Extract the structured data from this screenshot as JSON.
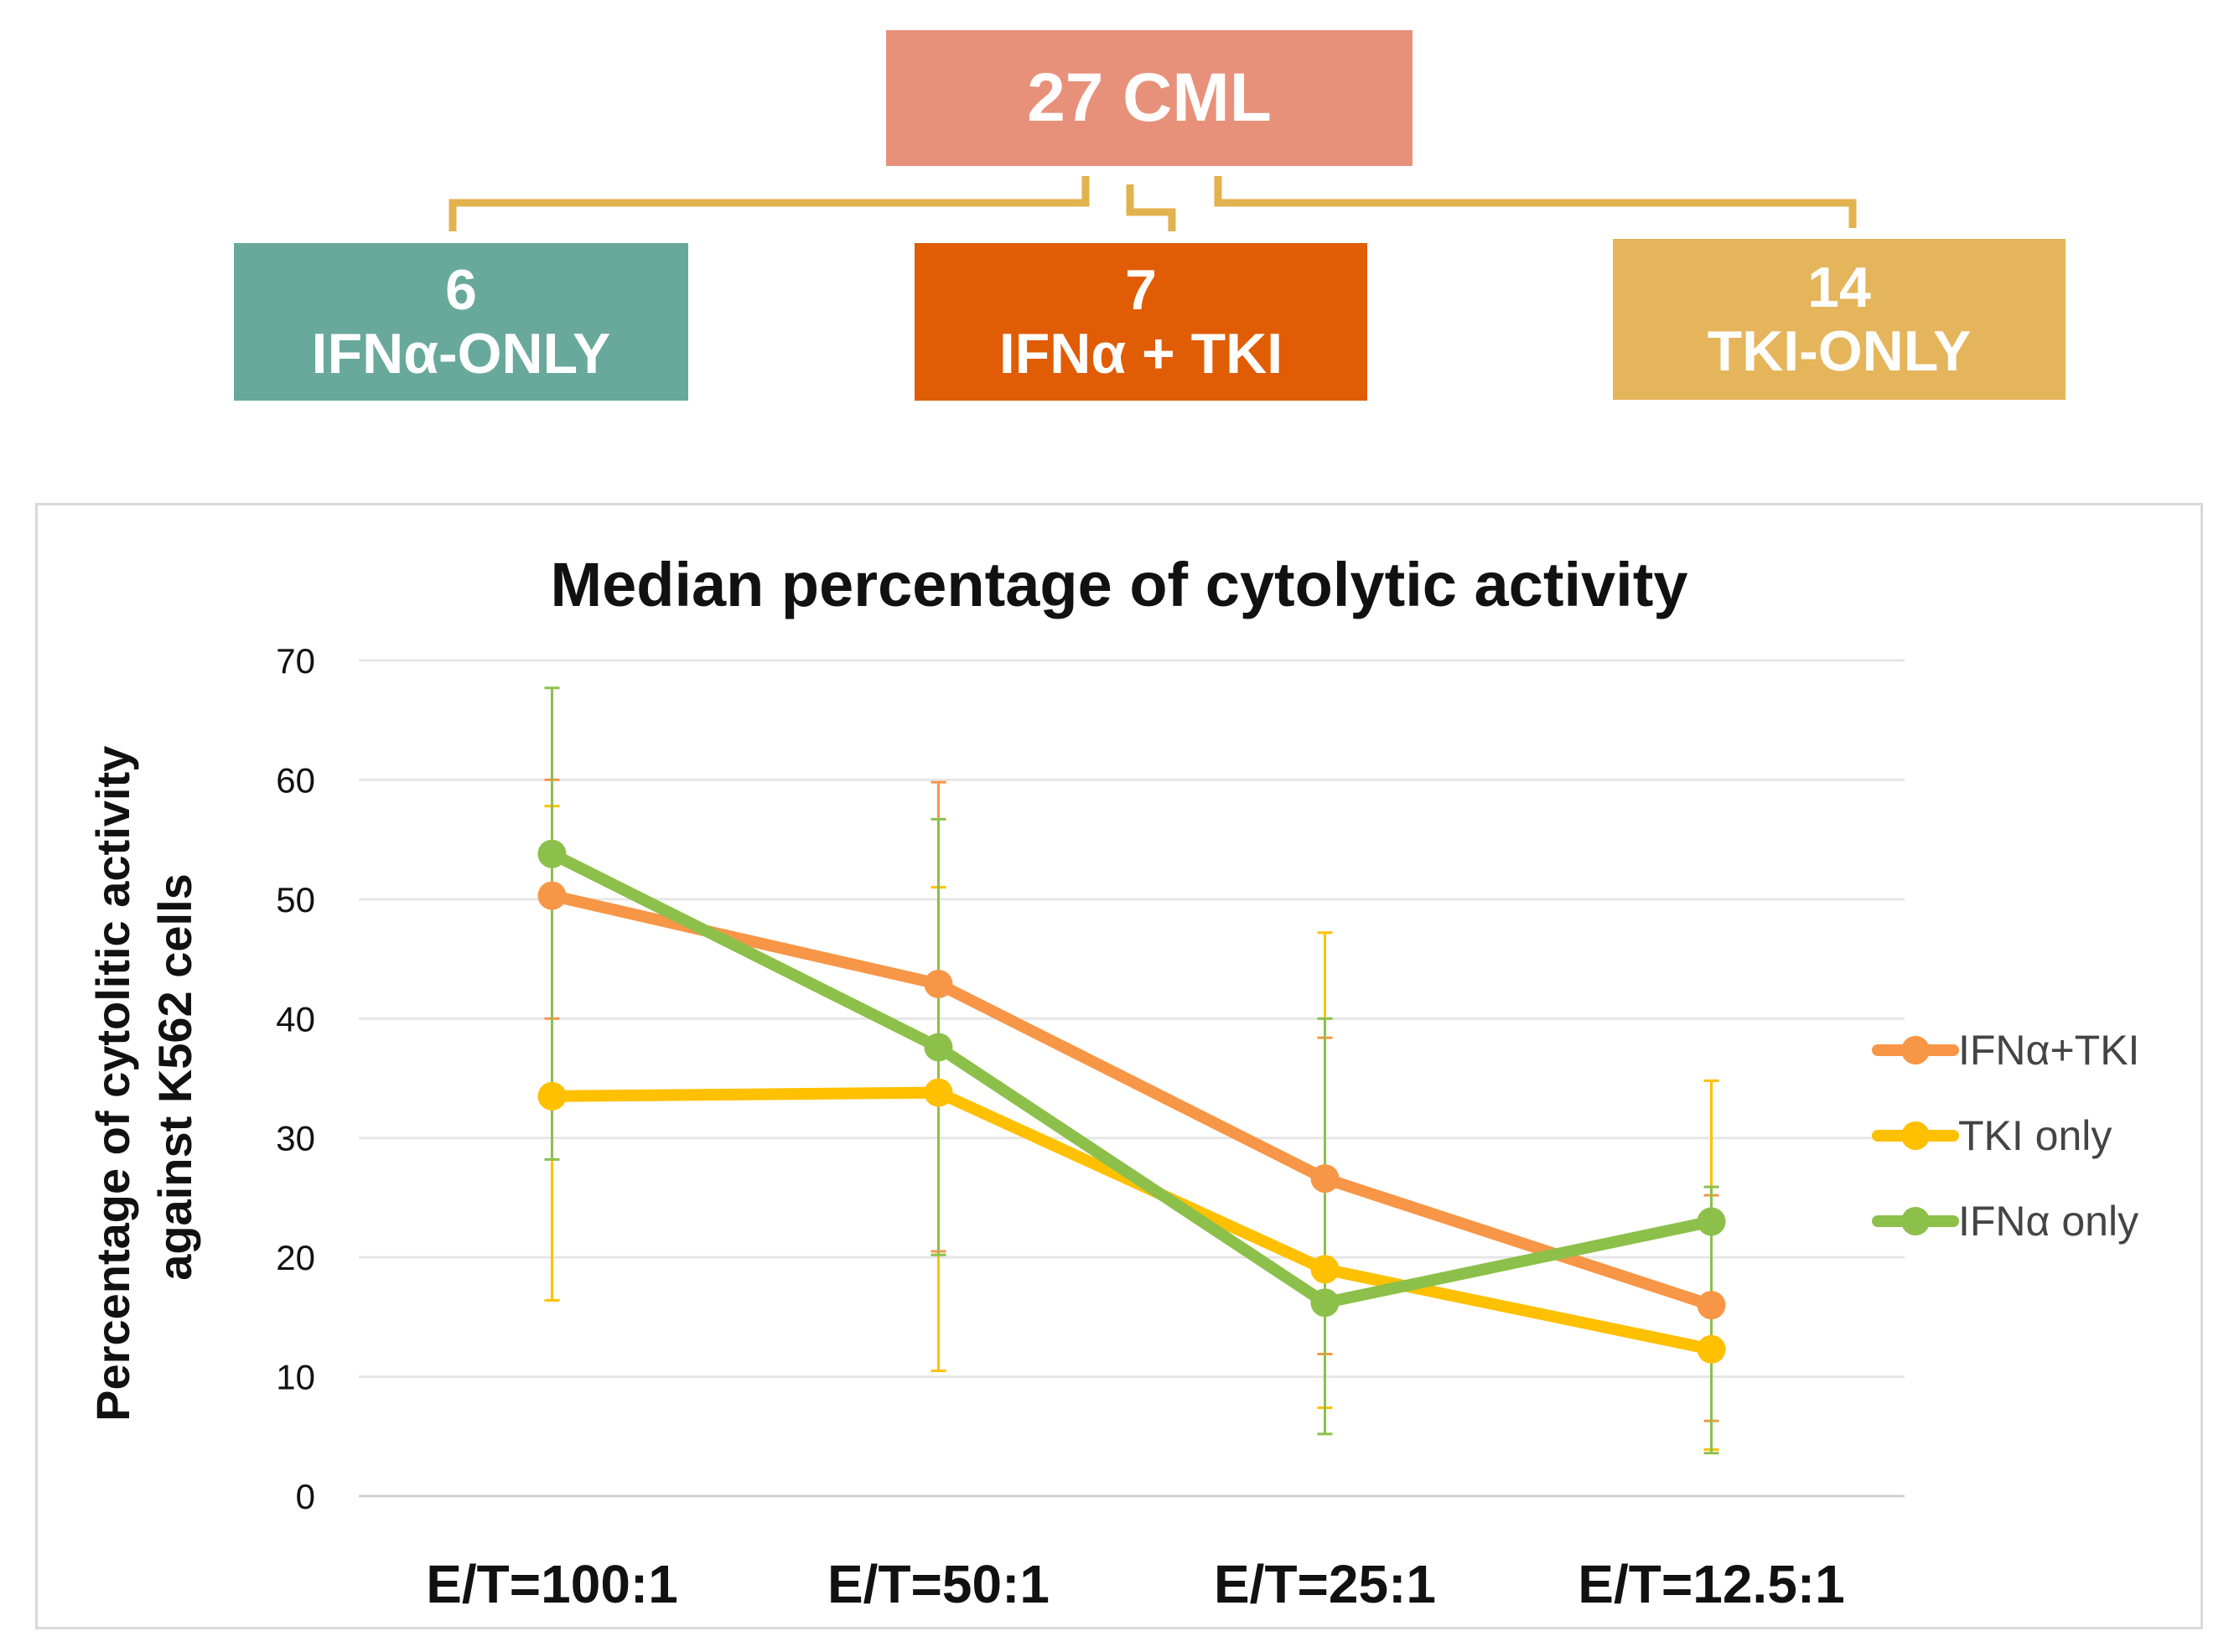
{
  "tree": {
    "root": "27 CML",
    "groups": [
      {
        "count": "6",
        "label": "IFNα-ONLY",
        "color": "#68a99b"
      },
      {
        "count": "7",
        "label": "IFNα + TKI",
        "color": "#e05c05"
      },
      {
        "count": "14",
        "label": "TKI-ONLY",
        "color": "#e5b55c"
      }
    ],
    "root_color": "#e8917a",
    "connector_color": "#e2b24e"
  },
  "chart_data": {
    "type": "line",
    "title": "Median percentage of cytolytic activity",
    "ylabel_lines": [
      "Percentage of cytolitic activity",
      "against K562 cells"
    ],
    "xlabel": "",
    "categories": [
      "E/T=100:1",
      "E/T=50:1",
      "E/T=25:1",
      "E/T=12.5:1"
    ],
    "ylim": [
      0,
      70
    ],
    "yticks": [
      0,
      10,
      20,
      30,
      40,
      50,
      60,
      70
    ],
    "grid": true,
    "legend_position": "right",
    "series": [
      {
        "name": "IFNα+TKI",
        "color": "#f79646",
        "values": [
          50.3,
          42.9,
          26.6,
          16.0
        ],
        "err_low": [
          40.0,
          20.5,
          11.9,
          6.3
        ],
        "err_high": [
          60.0,
          59.8,
          38.4,
          25.2
        ]
      },
      {
        "name": "TKI only",
        "color": "#ffc000",
        "values": [
          33.5,
          33.8,
          19.0,
          12.3
        ],
        "err_low": [
          16.4,
          10.5,
          7.4,
          3.9
        ],
        "err_high": [
          57.8,
          51.0,
          47.2,
          34.8
        ]
      },
      {
        "name": "IFNα only",
        "color": "#8cc04a",
        "values": [
          53.8,
          37.6,
          16.2,
          23.0
        ],
        "err_low": [
          28.2,
          20.2,
          5.2,
          3.6
        ],
        "err_high": [
          67.7,
          56.7,
          40.0,
          25.9
        ]
      }
    ]
  }
}
